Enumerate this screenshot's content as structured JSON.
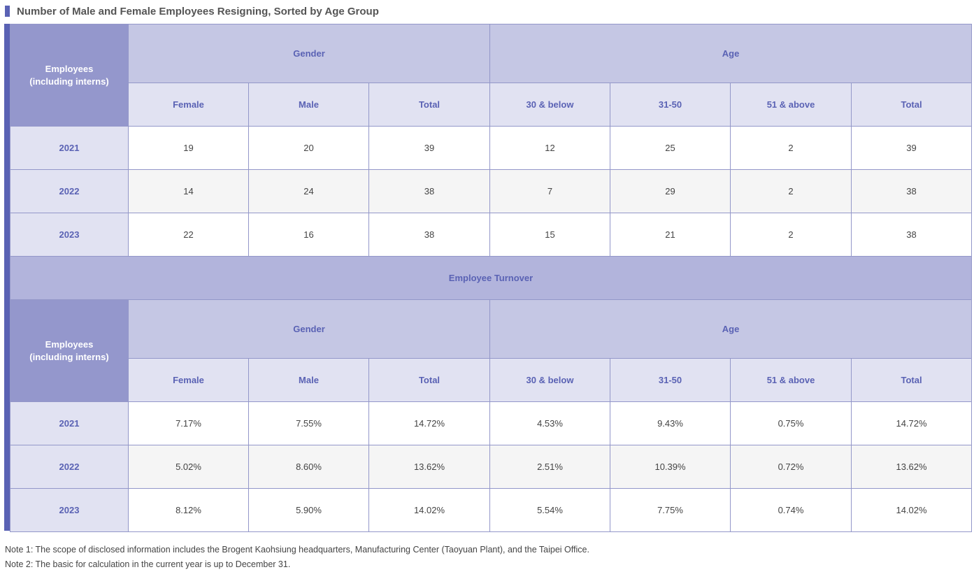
{
  "title": "Number of Male and Female Employees Resigning, Sorted by Age Group",
  "colors": {
    "accent": "#5a62b4",
    "header_group": "#c5c7e4",
    "header_sub": "#e1e2f2",
    "corner": "#9497cc"
  },
  "resign_table": {
    "corner_label_1": "Employees",
    "corner_label_2": "(including interns)",
    "group_gender": "Gender",
    "group_age": "Age",
    "columns": [
      "Female",
      "Male",
      "Total",
      "30 & below",
      "31-50",
      "51 & above",
      "Total"
    ],
    "rows": [
      {
        "year": "2021",
        "values": [
          "19",
          "20",
          "39",
          "12",
          "25",
          "2",
          "39"
        ]
      },
      {
        "year": "2022",
        "values": [
          "14",
          "24",
          "38",
          "7",
          "29",
          "2",
          "38"
        ]
      },
      {
        "year": "2023",
        "values": [
          "22",
          "16",
          "38",
          "15",
          "21",
          "2",
          "38"
        ]
      }
    ]
  },
  "turnover_section_title": "Employee Turnover",
  "turnover_table": {
    "corner_label_1": "Employees",
    "corner_label_2": "(including interns)",
    "group_gender": "Gender",
    "group_age": "Age",
    "columns": [
      "Female",
      "Male",
      "Total",
      "30 & below",
      "31-50",
      "51 & above",
      "Total"
    ],
    "rows": [
      {
        "year": "2021",
        "values": [
          "7.17%",
          "7.55%",
          "14.72%",
          "4.53%",
          "9.43%",
          "0.75%",
          "14.72%"
        ]
      },
      {
        "year": "2022",
        "values": [
          "5.02%",
          "8.60%",
          "13.62%",
          "2.51%",
          "10.39%",
          "0.72%",
          "13.62%"
        ]
      },
      {
        "year": "2023",
        "values": [
          "8.12%",
          "5.90%",
          "14.02%",
          "5.54%",
          "7.75%",
          "0.74%",
          "14.02%"
        ]
      }
    ]
  },
  "notes": [
    "Note 1: The scope of disclosed information includes the Brogent Kaohsiung headquarters, Manufacturing Center (Taoyuan Plant), and the Taipei Office.",
    "Note 2: The basic for calculation in the current year is up to December 31."
  ]
}
